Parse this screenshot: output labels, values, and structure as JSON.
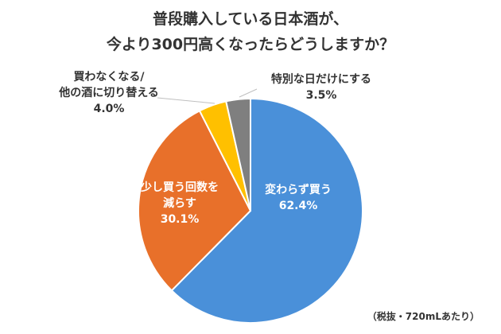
{
  "chart_data": {
    "type": "pie",
    "title_lines": [
      "普段購入している日本酒が、",
      "今より300円高くなったらどうしますか？"
    ],
    "note": "（税抜・720mLあたり）",
    "slices": [
      {
        "label_lines": [
          "変わらず買う"
        ],
        "value": 62.4,
        "value_text": "62.4%",
        "color": "#4A90D9"
      },
      {
        "label_lines": [
          "少し買う回数を",
          "減らす"
        ],
        "value": 30.1,
        "value_text": "30.1%",
        "color": "#E8702A"
      },
      {
        "label_lines": [
          "買わなくなる/",
          "他の酒に切り替える"
        ],
        "value": 4.0,
        "value_text": "4.0%",
        "color": "#FFC000"
      },
      {
        "label_lines": [
          "特別な日だけにする"
        ],
        "value": 3.5,
        "value_text": "3.5%",
        "color": "#7F7F7F"
      }
    ]
  }
}
